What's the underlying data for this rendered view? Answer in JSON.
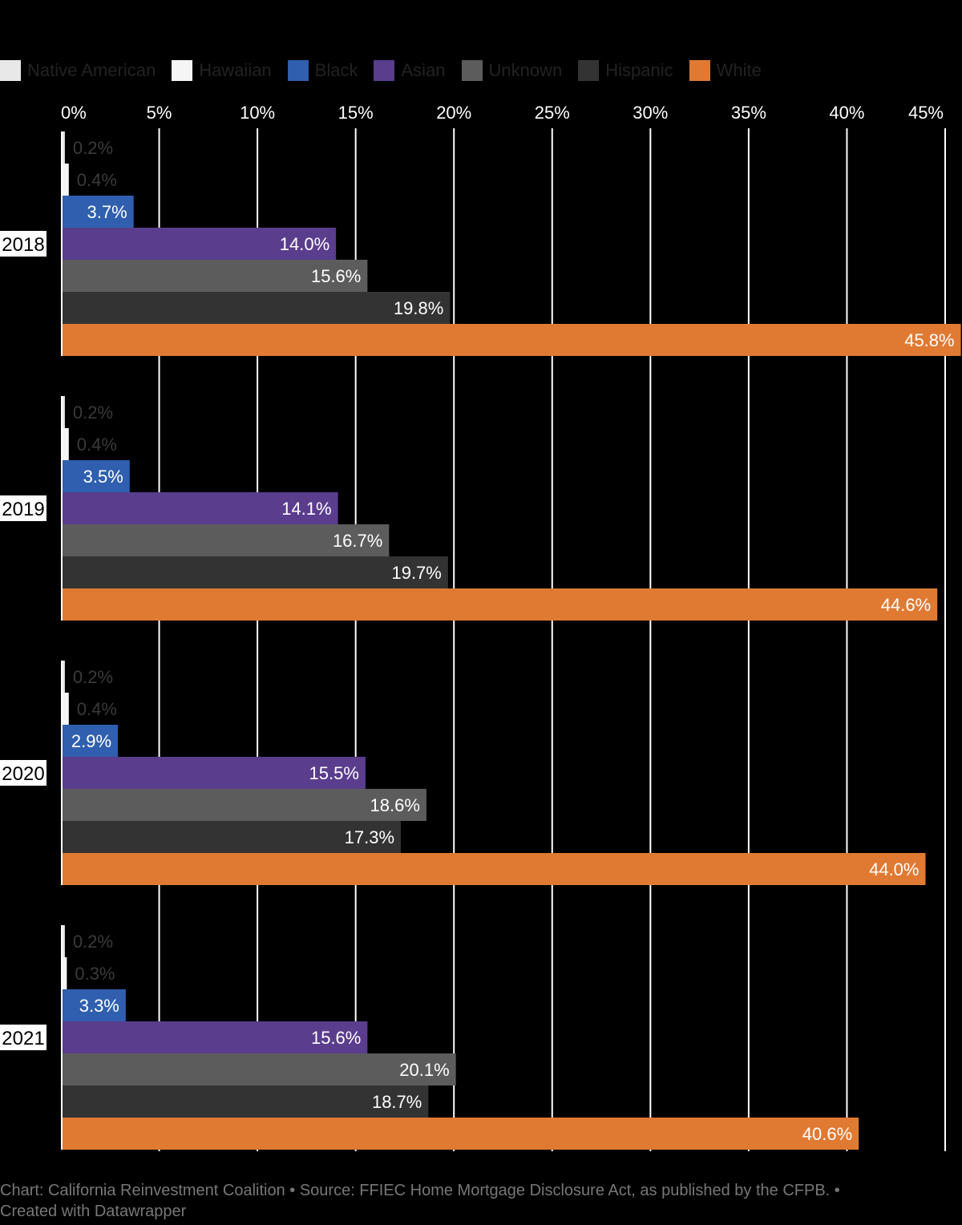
{
  "chart_data": {
    "type": "bar",
    "orientation": "horizontal",
    "categories": [
      "2018",
      "2019",
      "2020",
      "2021"
    ],
    "series": [
      {
        "name": "Native American",
        "color": "#e8e8e8",
        "values": [
          0.2,
          0.2,
          0.2,
          0.2
        ],
        "labels": [
          "0.2%",
          "0.2%",
          "0.2%",
          "0.2%"
        ]
      },
      {
        "name": "Hawaiian",
        "color": "#f5f5f5",
        "values": [
          0.4,
          0.4,
          0.4,
          0.3
        ],
        "labels": [
          "0.4%",
          "0.4%",
          "0.4%",
          "0.3%"
        ]
      },
      {
        "name": "Black",
        "color": "#2f5fae",
        "values": [
          3.7,
          3.5,
          2.9,
          3.3
        ],
        "labels": [
          "3.7%",
          "3.5%",
          "2.9%",
          "3.3%"
        ]
      },
      {
        "name": "Asian",
        "color": "#5a3d8c",
        "values": [
          14.0,
          14.1,
          15.5,
          15.6
        ],
        "labels": [
          "14.0%",
          "14.1%",
          "15.5%",
          "15.6%"
        ]
      },
      {
        "name": "Unknown",
        "color": "#5c5c5c",
        "values": [
          15.6,
          16.7,
          18.6,
          20.1
        ],
        "labels": [
          "15.6%",
          "16.7%",
          "18.6%",
          "20.1%"
        ]
      },
      {
        "name": "Hispanic",
        "color": "#333333",
        "values": [
          19.8,
          19.7,
          17.3,
          18.7
        ],
        "labels": [
          "19.8%",
          "19.7%",
          "17.3%",
          "18.7%"
        ]
      },
      {
        "name": "White",
        "color": "#e07a33",
        "values": [
          45.8,
          44.6,
          44.0,
          40.6
        ],
        "labels": [
          "45.8%",
          "44.6%",
          "44.0%",
          "40.6%"
        ]
      }
    ],
    "xlim": [
      0,
      45
    ],
    "x_ticks": [
      0,
      5,
      10,
      15,
      20,
      25,
      30,
      35,
      40,
      45
    ],
    "x_tick_labels": [
      "0%",
      "5%",
      "10%",
      "15%",
      "20%",
      "25%",
      "30%",
      "35%",
      "40%",
      "45%"
    ],
    "x_axis_position": "top",
    "grid": true,
    "legend_position": "top-left",
    "data_labels": "inside-end"
  },
  "footer": {
    "line1": "Chart: California Reinvestment Coalition • Source: FFIEC Home Mortgage Disclosure Act, as published by the CFPB. •",
    "line2": "Created with Datawrapper"
  }
}
